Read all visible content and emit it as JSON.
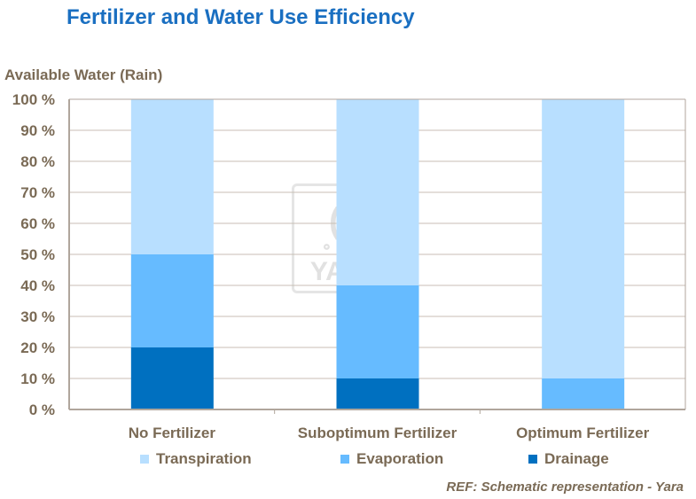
{
  "chart_data": {
    "type": "bar",
    "stacked": true,
    "title": "Fertilizer and Water Use Efficiency",
    "ylabel": "Available Water (Rain)",
    "xlabel": "",
    "ylim": [
      0,
      100
    ],
    "yticks": [
      "0 %",
      "10 %",
      "20 %",
      "30 %",
      "40 %",
      "50 %",
      "60 %",
      "70 %",
      "80 %",
      "90 %",
      "100 %"
    ],
    "categories": [
      "No Fertilizer",
      "Suboptimum Fertilizer",
      "Optimum Fertilizer"
    ],
    "series": [
      {
        "name": "Drainage",
        "values": [
          20,
          10,
          0
        ],
        "color": "#0070c0"
      },
      {
        "name": "Evaporation",
        "values": [
          30,
          30,
          10
        ],
        "color": "#66bbff"
      },
      {
        "name": "Transpiration",
        "values": [
          50,
          60,
          90
        ],
        "color": "#b8dfff"
      }
    ],
    "legend_order": [
      "Transpiration",
      "Evaporation",
      "Drainage"
    ],
    "legend_position": "bottom",
    "grid": true
  },
  "watermark": "YARA",
  "reference": "REF: Schematic representation - Yara"
}
